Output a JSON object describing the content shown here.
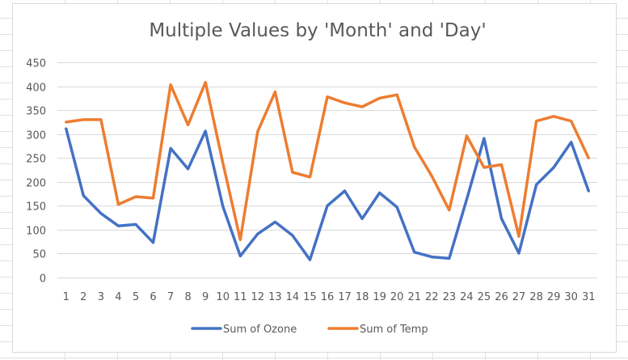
{
  "chart_data": {
    "type": "line",
    "title": "Multiple Values by 'Month' and 'Day'",
    "xlabel": "",
    "ylabel": "",
    "categories": [
      "1",
      "2",
      "3",
      "4",
      "5",
      "6",
      "7",
      "8",
      "9",
      "10",
      "11",
      "12",
      "13",
      "14",
      "15",
      "16",
      "17",
      "18",
      "19",
      "20",
      "21",
      "22",
      "23",
      "24",
      "25",
      "26",
      "27",
      "28",
      "29",
      "30",
      "31"
    ],
    "y_ticks": [
      "0",
      "50",
      "100",
      "150",
      "200",
      "250",
      "300",
      "350",
      "400",
      "450"
    ],
    "ylim": [
      0,
      450
    ],
    "grid": "horizontal",
    "legend_position": "bottom",
    "series": [
      {
        "name": "Sum of Ozone",
        "color": "#4472c4",
        "values": [
          311,
          171,
          134,
          108,
          111,
          73,
          270,
          227,
          306,
          149,
          45,
          91,
          116,
          88,
          37,
          150,
          181,
          123,
          177,
          147,
          53,
          43,
          40,
          163,
          291,
          123,
          51,
          194,
          230,
          283,
          181
        ]
      },
      {
        "name": "Sum of Temp",
        "color": "#ed7d31",
        "values": [
          325,
          330,
          330,
          153,
          169,
          166,
          403,
          319,
          408,
          240,
          79,
          305,
          388,
          220,
          210,
          378,
          365,
          357,
          375,
          382,
          273,
          212,
          141,
          296,
          230,
          236,
          86,
          327,
          337,
          327,
          250
        ]
      }
    ]
  }
}
